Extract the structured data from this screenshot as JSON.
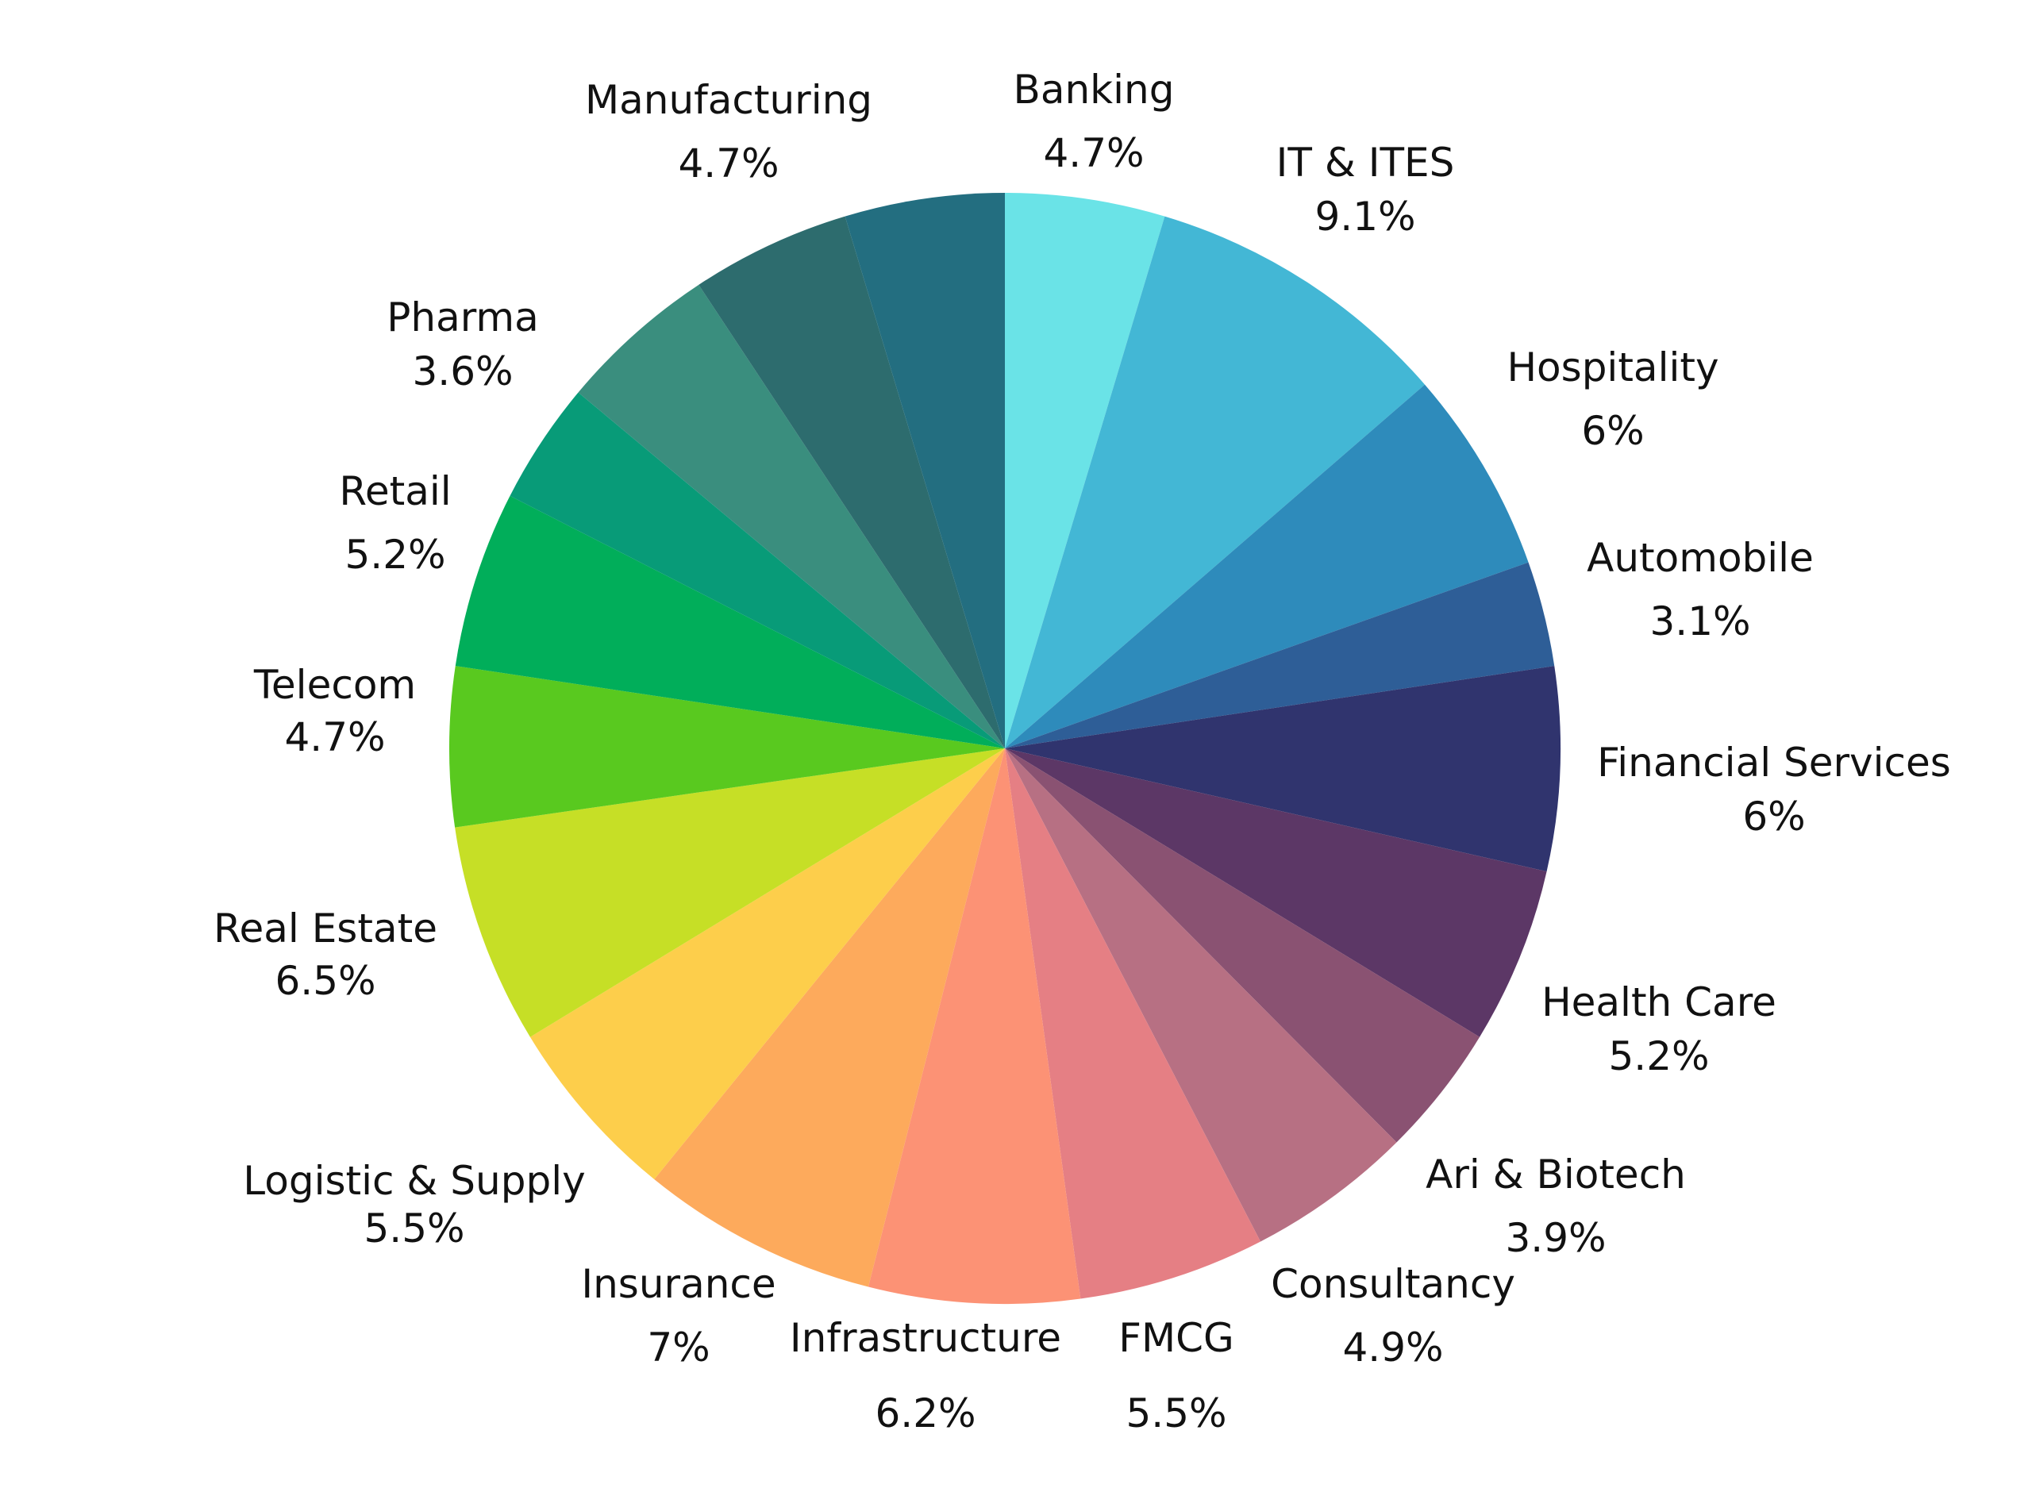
{
  "chart_data": {
    "type": "pie",
    "title": "",
    "start_angle_deg": 0,
    "direction": "clockwise",
    "slices": [
      {
        "label": "Banking",
        "value": 4.7,
        "value_label": "4.7%",
        "color": "#6AE3E7"
      },
      {
        "label": "IT & ITES",
        "value": 9.1,
        "value_label": "9.1%",
        "color": "#43B7D5"
      },
      {
        "label": "Hospitality",
        "value": 6.0,
        "value_label": "6%",
        "color": "#2E8BBB"
      },
      {
        "label": "Automobile",
        "value": 3.1,
        "value_label": "3.1%",
        "color": "#2E5E97"
      },
      {
        "label": "Financial Services",
        "value": 6.0,
        "value_label": "6%",
        "color": "#30346E"
      },
      {
        "label": "Health Care",
        "value": 5.2,
        "value_label": "5.2%",
        "color": "#5C3766"
      },
      {
        "label": "Ari & Biotech",
        "value": 3.9,
        "value_label": "3.9%",
        "color": "#8A5272"
      },
      {
        "label": "Consultancy",
        "value": 4.9,
        "value_label": "4.9%",
        "color": "#B77083"
      },
      {
        "label": "FMCG",
        "value": 5.5,
        "value_label": "5.5%",
        "color": "#E57F84"
      },
      {
        "label": "Infrastructure",
        "value": 6.2,
        "value_label": "6.2%",
        "color": "#FC9275"
      },
      {
        "label": "Insurance",
        "value": 7.0,
        "value_label": "7%",
        "color": "#FDAA5C"
      },
      {
        "label": "Logistic & Supply",
        "value": 5.5,
        "value_label": "5.5%",
        "color": "#FDCE4B"
      },
      {
        "label": "Real Estate",
        "value": 6.5,
        "value_label": "6.5%",
        "color": "#C6DF26"
      },
      {
        "label": "Telecom",
        "value": 4.7,
        "value_label": "4.7%",
        "color": "#59C91F"
      },
      {
        "label": "Retail",
        "value": 5.2,
        "value_label": "5.2%",
        "color": "#01AE5A"
      },
      {
        "label": "Pharma",
        "value": 3.6,
        "value_label": "3.6%",
        "color": "#089B78"
      },
      {
        "label": "Manufacturing",
        "value": 4.7,
        "value_label": "4.7%",
        "color": "#3A8E7E"
      },
      {
        "label": "",
        "value": 4.7,
        "value_label": "",
        "color": "#2D6C6E"
      },
      {
        "label": "",
        "value": 4.7,
        "value_label": "",
        "color": "#236E80"
      }
    ]
  }
}
